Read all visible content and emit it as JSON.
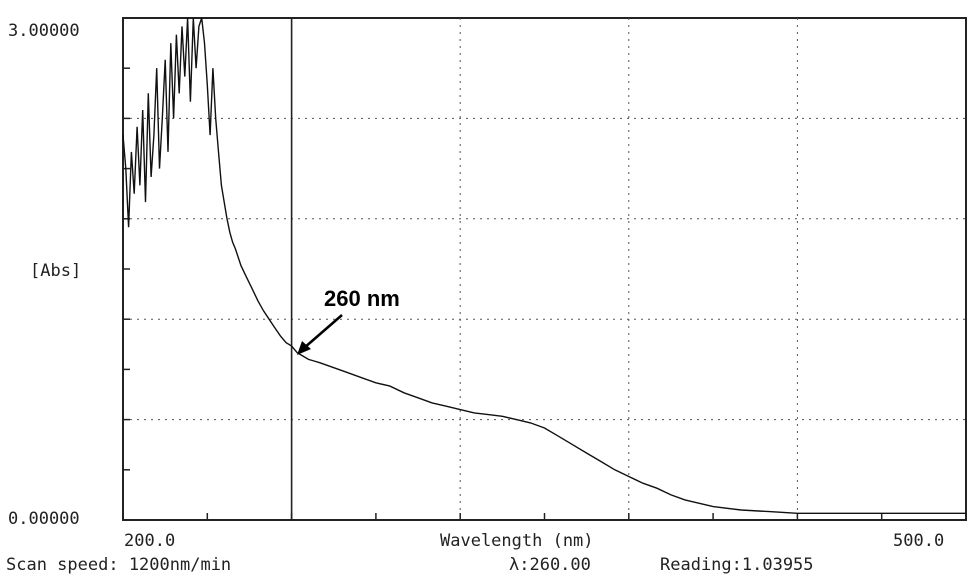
{
  "chart_data": {
    "type": "line",
    "xlabel": "Wavelength (nm)",
    "ylabel": "[Abs]",
    "xlim": [
      200,
      500
    ],
    "ylim": [
      0,
      3
    ],
    "x_tick_labels": [
      "200.0",
      "500.0"
    ],
    "y_tick_labels": [
      "0.00000",
      "3.00000"
    ],
    "grid": true,
    "annotation": {
      "text": "260 nm",
      "x": 260,
      "y": 1.04
    },
    "cursor_x": 260,
    "series": [
      {
        "x": [
          200,
          201,
          202,
          203,
          204,
          205,
          206,
          207,
          208,
          209,
          210,
          211,
          212,
          213,
          214,
          215,
          216,
          217,
          218,
          219,
          220,
          221,
          222,
          223,
          224,
          225,
          226,
          227,
          228,
          229,
          230,
          231,
          232,
          233,
          234,
          235,
          236,
          237,
          238,
          239,
          240,
          242,
          244,
          246,
          248,
          250,
          252,
          254,
          256,
          258,
          260,
          262,
          264,
          266,
          268,
          270,
          275,
          280,
          285,
          290,
          295,
          300,
          305,
          310,
          315,
          320,
          325,
          330,
          335,
          340,
          345,
          350,
          355,
          360,
          365,
          370,
          375,
          380,
          385,
          390,
          395,
          400,
          410,
          420,
          430,
          440,
          450,
          460,
          470,
          480,
          490,
          500
        ],
        "y": [
          2.3,
          2.1,
          1.75,
          2.2,
          1.95,
          2.35,
          2.0,
          2.45,
          1.9,
          2.55,
          2.05,
          2.3,
          2.7,
          2.1,
          2.4,
          2.75,
          2.2,
          2.85,
          2.4,
          2.9,
          2.55,
          2.95,
          2.65,
          3.0,
          2.5,
          3.0,
          2.7,
          2.95,
          3.0,
          2.85,
          2.6,
          2.3,
          2.7,
          2.4,
          2.2,
          2.0,
          1.9,
          1.8,
          1.72,
          1.66,
          1.62,
          1.52,
          1.45,
          1.38,
          1.31,
          1.25,
          1.2,
          1.15,
          1.1,
          1.06,
          1.04,
          1.0,
          0.98,
          0.96,
          0.95,
          0.94,
          0.91,
          0.88,
          0.85,
          0.82,
          0.8,
          0.76,
          0.73,
          0.7,
          0.68,
          0.66,
          0.64,
          0.63,
          0.62,
          0.6,
          0.58,
          0.55,
          0.5,
          0.45,
          0.4,
          0.35,
          0.3,
          0.26,
          0.22,
          0.19,
          0.15,
          0.12,
          0.08,
          0.06,
          0.05,
          0.04,
          0.04,
          0.04,
          0.04,
          0.04,
          0.04,
          0.04
        ]
      }
    ]
  },
  "footer": {
    "scan_speed": "Scan speed: 1200nm/min",
    "lambda": "λ:260.00",
    "reading": "Reading:1.03955"
  }
}
